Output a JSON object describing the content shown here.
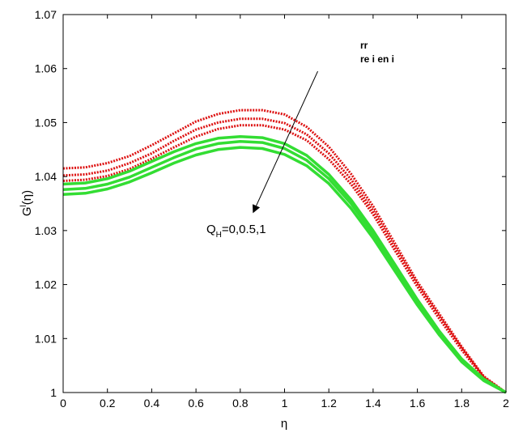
{
  "chart_data": {
    "type": "line",
    "xlabel": "η",
    "ylabel": "G",
    "ylabel_superscript": "l",
    "ylabel_suffix": "(η)",
    "xlim": [
      0,
      2
    ],
    "ylim": [
      1,
      1.07
    ],
    "xticks": [
      0,
      0.2,
      0.4,
      0.6,
      0.8,
      1,
      1.2,
      1.4,
      1.6,
      1.8,
      2
    ],
    "xtick_labels": [
      "0",
      "0.2",
      "0.4",
      "0.6",
      "0.8",
      "1",
      "1.2",
      "1.4",
      "1.6",
      "1.8",
      "2"
    ],
    "yticks": [
      1,
      1.01,
      1.02,
      1.03,
      1.04,
      1.05,
      1.06,
      1.07
    ],
    "ytick_labels": [
      "1",
      "1.01",
      "1.02",
      "1.03",
      "1.04",
      "1.05",
      "1.06",
      "1.07"
    ],
    "grid": false,
    "legend": {
      "position": "top-right",
      "entries": [
        {
          "label": "rr",
          "color": "#cc0000",
          "style": "dotted"
        },
        {
          "label": "re i en   i",
          "color": "#33dd33",
          "style": "solid"
        }
      ]
    },
    "annotation": {
      "text_main": "Q",
      "text_sub": "H",
      "text_rest": "=0,0.5,1",
      "arrow": {
        "from": [
          1.15,
          1.0595
        ],
        "to": [
          0.86,
          1.0335
        ]
      }
    },
    "series": [
      {
        "color": "#dd1111",
        "style": "dotted",
        "x": [
          0,
          0.1,
          0.2,
          0.3,
          0.4,
          0.5,
          0.6,
          0.7,
          0.8,
          0.9,
          1.0,
          1.1,
          1.2,
          1.3,
          1.4,
          1.5,
          1.6,
          1.7,
          1.8,
          1.9,
          2.0
        ],
        "y": [
          1.0415,
          1.0417,
          1.0425,
          1.0438,
          1.0458,
          1.048,
          1.0502,
          1.0516,
          1.0523,
          1.0523,
          1.0515,
          1.0492,
          1.0455,
          1.0405,
          1.0345,
          1.0275,
          1.0205,
          1.0145,
          1.0085,
          1.003,
          1.0
        ]
      },
      {
        "color": "#dd1111",
        "style": "dotted",
        "x": [
          0,
          0.1,
          0.2,
          0.3,
          0.4,
          0.5,
          0.6,
          0.7,
          0.8,
          0.9,
          1.0,
          1.1,
          1.2,
          1.3,
          1.4,
          1.5,
          1.6,
          1.7,
          1.8,
          1.9,
          2.0
        ],
        "y": [
          1.0402,
          1.0404,
          1.0411,
          1.0425,
          1.0443,
          1.0466,
          1.0487,
          1.05,
          1.0507,
          1.0507,
          1.0499,
          1.0478,
          1.0443,
          1.0395,
          1.0337,
          1.0268,
          1.02,
          1.014,
          1.0082,
          1.0028,
          1.0
        ]
      },
      {
        "color": "#dd1111",
        "style": "dotted",
        "x": [
          0,
          0.1,
          0.2,
          0.3,
          0.4,
          0.5,
          0.6,
          0.7,
          0.8,
          0.9,
          1.0,
          1.1,
          1.2,
          1.3,
          1.4,
          1.5,
          1.6,
          1.7,
          1.8,
          1.9,
          2.0
        ],
        "y": [
          1.0392,
          1.0394,
          1.0401,
          1.0414,
          1.0433,
          1.0454,
          1.0474,
          1.0488,
          1.0495,
          1.0495,
          1.0487,
          1.0467,
          1.0432,
          1.0386,
          1.033,
          1.0262,
          1.0196,
          1.0136,
          1.0079,
          1.0027,
          1.0
        ]
      },
      {
        "color": "#33dd33",
        "style": "solid",
        "x": [
          0,
          0.1,
          0.2,
          0.3,
          0.4,
          0.5,
          0.6,
          0.7,
          0.8,
          0.9,
          1.0,
          1.1,
          1.2,
          1.3,
          1.4,
          1.5,
          1.6,
          1.7,
          1.8,
          1.9,
          2.0
        ],
        "y": [
          1.0386,
          1.0388,
          1.0396,
          1.041,
          1.0428,
          1.0446,
          1.0461,
          1.0471,
          1.0474,
          1.0472,
          1.0461,
          1.0439,
          1.0404,
          1.0357,
          1.03,
          1.0236,
          1.0172,
          1.0113,
          1.0062,
          1.0025,
          1.0
        ]
      },
      {
        "color": "#33dd33",
        "style": "solid",
        "x": [
          0,
          0.1,
          0.2,
          0.3,
          0.4,
          0.5,
          0.6,
          0.7,
          0.8,
          0.9,
          1.0,
          1.1,
          1.2,
          1.3,
          1.4,
          1.5,
          1.6,
          1.7,
          1.8,
          1.9,
          2.0
        ],
        "y": [
          1.0376,
          1.0378,
          1.0386,
          1.0399,
          1.0417,
          1.0435,
          1.0451,
          1.0461,
          1.0465,
          1.0463,
          1.0452,
          1.043,
          1.0396,
          1.035,
          1.0294,
          1.0231,
          1.0168,
          1.011,
          1.006,
          1.0024,
          1.0
        ]
      },
      {
        "color": "#33dd33",
        "style": "solid",
        "x": [
          0,
          0.1,
          0.2,
          0.3,
          0.4,
          0.5,
          0.6,
          0.7,
          0.8,
          0.9,
          1.0,
          1.1,
          1.2,
          1.3,
          1.4,
          1.5,
          1.6,
          1.7,
          1.8,
          1.9,
          2.0
        ],
        "y": [
          1.0367,
          1.0369,
          1.0377,
          1.039,
          1.0407,
          1.0425,
          1.044,
          1.045,
          1.0454,
          1.0452,
          1.0441,
          1.042,
          1.0387,
          1.0341,
          1.0286,
          1.0224,
          1.0162,
          1.0106,
          1.0057,
          1.0022,
          1.0
        ]
      }
    ]
  }
}
